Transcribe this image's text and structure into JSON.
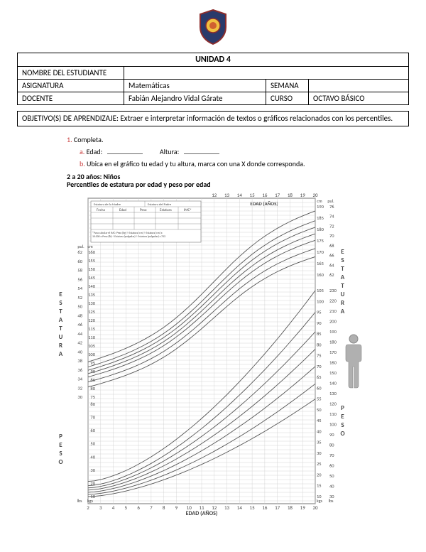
{
  "logo": {
    "shield_fill": "#2a3a6b",
    "shield_stroke": "#8b2c2c",
    "inner_circle": "#f0c040"
  },
  "header": {
    "unit_title": "UNIDAD 4",
    "row_nombre_label": "NOMBRE DEL ESTUDIANTE",
    "row_nombre_value": "",
    "row_asig_label": "ASIGNATURA",
    "row_asig_value": "Matemáticas",
    "row_semana_label": "SEMANA",
    "row_semana_value": "",
    "row_docente_label": "DOCENTE",
    "row_docente_value": "Fabián Alejandro Vidal Gárate",
    "row_curso_label": "CURSO",
    "row_curso_value": "OCTAVO BÁSICO"
  },
  "objective": {
    "label": "OBJETIVO(S) DE APRENDIZAJE:",
    "text": "Extraer e interpretar información de textos o gráficos relacionados con los percentiles."
  },
  "worksheet": {
    "num": "1.",
    "completa": "Completa.",
    "item_a_letter": "a.",
    "item_a_edad": "Edad:",
    "item_a_altura": "Altura:",
    "item_b_letter": "b.",
    "item_b_text": "Ubica en el gráfico tu edad y tu altura, marca con una X donde corresponda.",
    "chart_title_line1": "2 a 20 años: Niños",
    "chart_title_line2": "Percentiles de estatura por edad y peso por edad"
  },
  "chart": {
    "bg": "#ffffff",
    "grid_color": "#c8c8c8",
    "grid_strong": "#888888",
    "curve_color": "#555555",
    "text_color": "#444444",
    "x_label_bottom": "EDAD (AÑOS)",
    "x_label_top": "EDAD (AÑOS)",
    "left_label_top": "ESTATURA",
    "left_label_bot": "PESO",
    "right_label_top": "ESTATURA",
    "right_label_bot": "PESO",
    "x_ticks_bottom": [
      2,
      3,
      4,
      5,
      6,
      7,
      8,
      9,
      10,
      11,
      12,
      13,
      14,
      15,
      16,
      17,
      18,
      19,
      20
    ],
    "x_ticks_top": [
      12,
      13,
      14,
      15,
      16,
      17,
      18,
      19,
      20
    ],
    "left_cm_ticks": [
      160,
      155,
      150,
      145,
      140,
      135,
      130,
      125,
      120,
      115,
      110,
      105,
      100,
      95,
      90,
      85,
      80,
      75
    ],
    "left_in_ticks": [
      62,
      60,
      58,
      56,
      54,
      52,
      50,
      48,
      46,
      44,
      42,
      40,
      38,
      36,
      34,
      32,
      30
    ],
    "left_peso_kg": [
      80,
      70,
      60,
      50,
      40,
      30,
      20,
      10
    ],
    "left_peso_lb": [
      "lbs"
    ],
    "right_cm_ticks": [
      190,
      185,
      180,
      175,
      170,
      165,
      160
    ],
    "right_in_ticks": [
      76,
      74,
      72,
      70,
      68,
      66,
      64,
      62
    ],
    "right_peso_kg": [
      105,
      100,
      95,
      90,
      85,
      80,
      75,
      70,
      65,
      60,
      55,
      50,
      45,
      40,
      35,
      30,
      25,
      20,
      15,
      10
    ],
    "right_peso_lb": [
      230,
      220,
      210,
      200,
      190,
      180,
      170,
      160,
      150,
      140,
      130,
      120,
      110,
      100,
      90,
      80,
      70,
      60,
      50,
      40,
      30
    ],
    "units_cm": "cm",
    "units_pul": "pul.",
    "units_kgs": "kgs",
    "units_lbs": "lbs",
    "info_box_lines": [
      "Estatura de la Madre",
      "Estatura del Padre",
      "Fecha",
      "Edad",
      "Peso",
      "Estatura",
      "IMC*"
    ],
    "imc_note": "*Para calcular el IMC: Peso (kg) ÷ Estatura (cm) ÷ Estatura (cm) x 10.000 o Peso (lb) ÷ Estatura (pulgadas) ÷ Estatura (pulgadas) x 703"
  },
  "person_icon": {
    "fill": "#b0b0b0",
    "stroke": "#888888"
  }
}
